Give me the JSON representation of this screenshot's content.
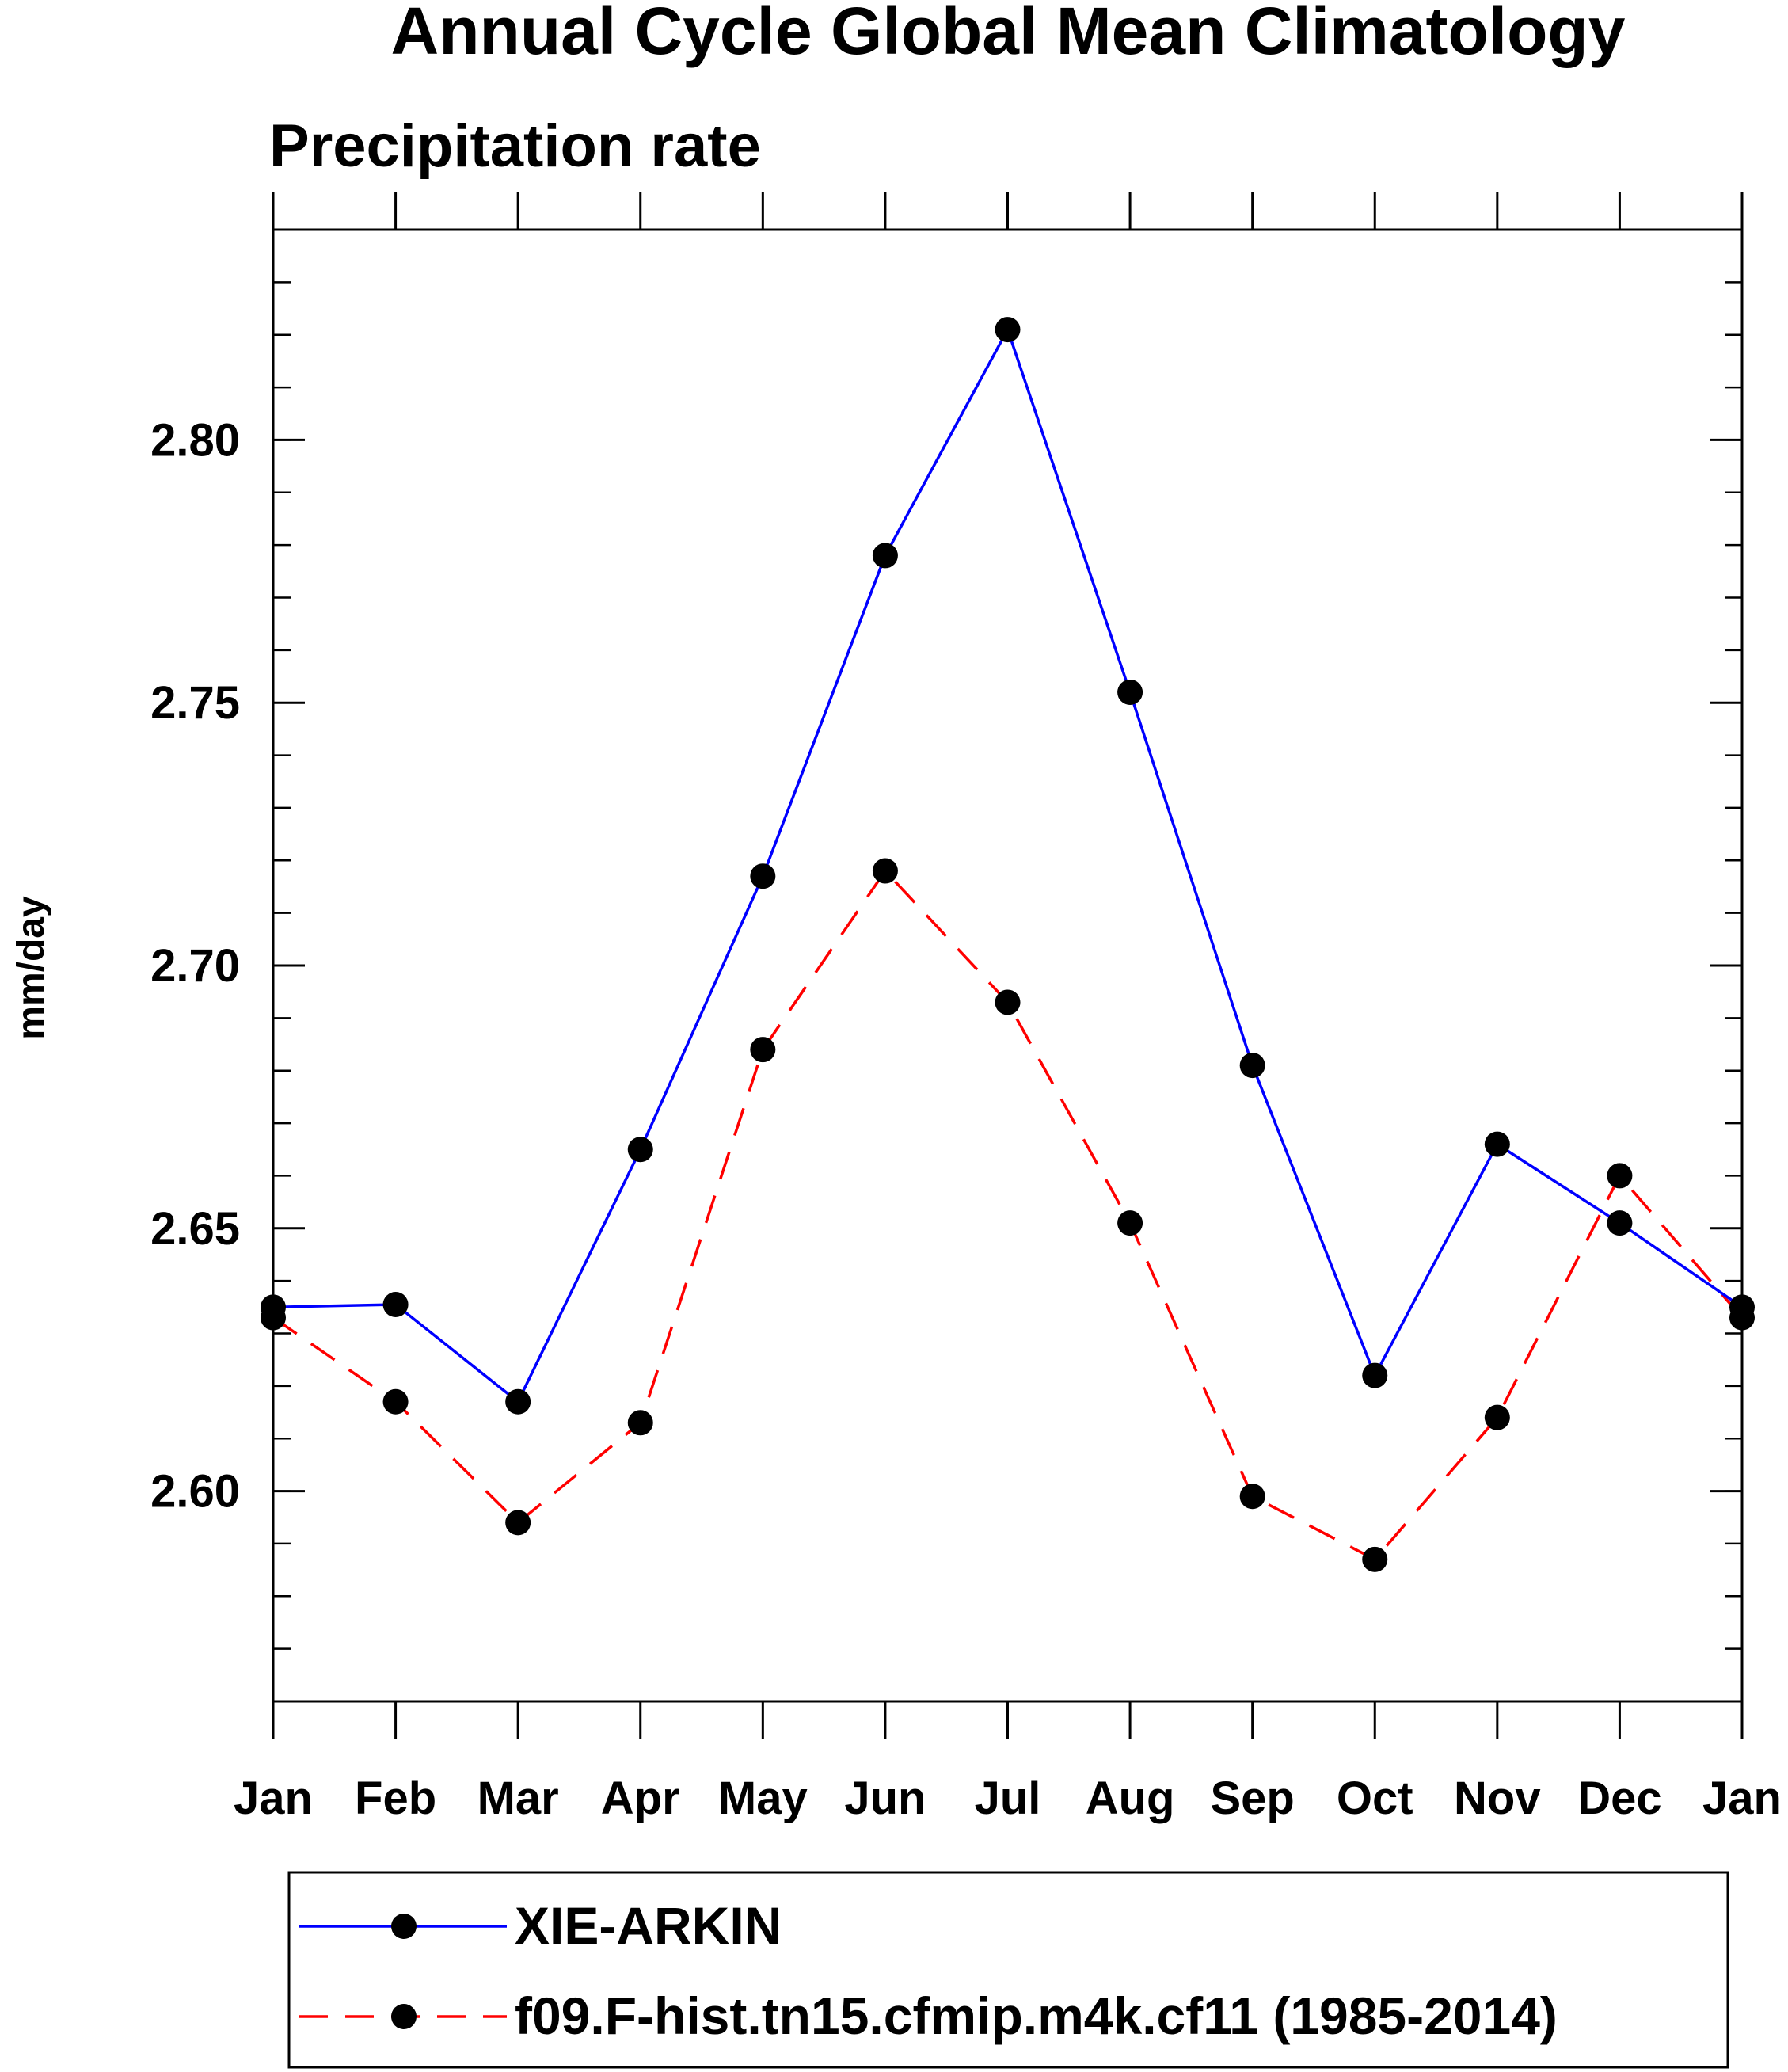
{
  "chart_data": {
    "type": "line",
    "title": "Annual Cycle Global Mean Climatology",
    "subtitle": "Precipitation rate",
    "xlabel": "",
    "ylabel": "mm/day",
    "categories": [
      "Jan",
      "Feb",
      "Mar",
      "Apr",
      "May",
      "Jun",
      "Jul",
      "Aug",
      "Sep",
      "Oct",
      "Nov",
      "Dec",
      "Jan"
    ],
    "ylim": [
      2.56,
      2.84
    ],
    "yticks": [
      "2.60",
      "2.65",
      "2.70",
      "2.75",
      "2.80"
    ],
    "ytick_values": [
      2.6,
      2.65,
      2.7,
      2.75,
      2.8
    ],
    "yminor_step": 0.01,
    "grid": false,
    "legend_position": "bottom",
    "series": [
      {
        "name": "XIE-ARKIN",
        "color": "#0000ff",
        "line_style": "solid",
        "marker": "filled-circle",
        "values": [
          2.635,
          2.6355,
          2.617,
          2.665,
          2.717,
          2.778,
          2.821,
          2.752,
          2.681,
          2.622,
          2.666,
          2.651,
          2.635
        ]
      },
      {
        "name": "f09.F-hist.tn15.cfmip.m4k.cf11 (1985-2014)",
        "color": "#ff0000",
        "line_style": "dashed",
        "marker": "filled-circle",
        "values": [
          2.633,
          2.617,
          2.594,
          2.613,
          2.684,
          2.718,
          2.693,
          2.651,
          2.599,
          2.587,
          2.614,
          2.66,
          2.633
        ]
      }
    ]
  }
}
